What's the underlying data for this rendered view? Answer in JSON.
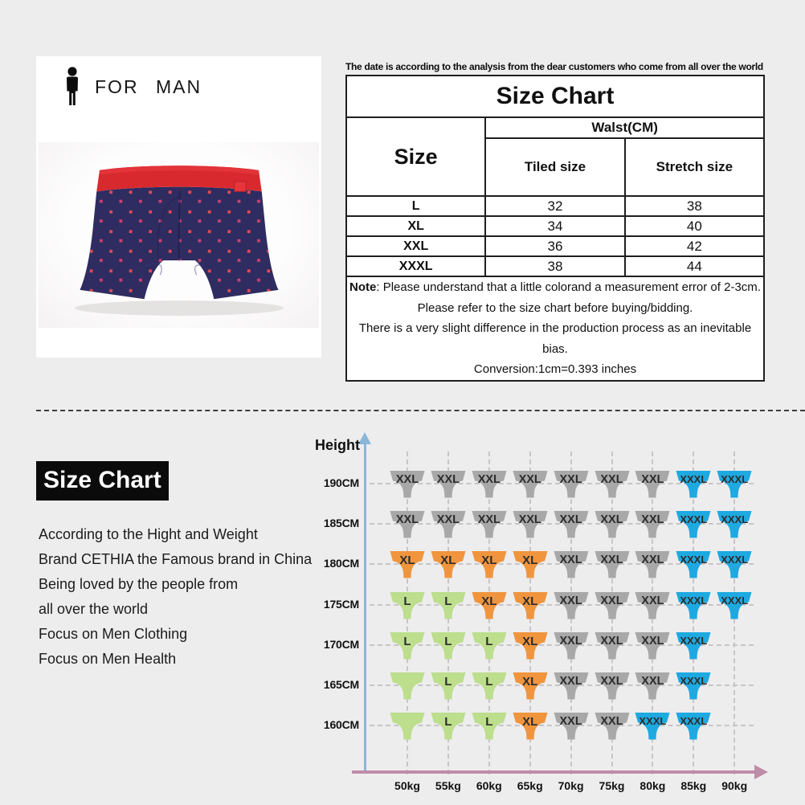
{
  "page": {
    "background": "#eeedee"
  },
  "product_card": {
    "man_label": "FOR MAN"
  },
  "top_note": "The date is according to the analysis from the dear customers who come from all over the world",
  "size_table": {
    "title": "Size Chart",
    "size_header": "Size",
    "group_header": "Walst(CM)",
    "sub_headers": [
      "Tiled size",
      "Stretch size"
    ],
    "rows": [
      {
        "size": "L",
        "tiled": "32",
        "stretch": "38"
      },
      {
        "size": "XL",
        "tiled": "34",
        "stretch": "40"
      },
      {
        "size": "XXL",
        "tiled": "36",
        "stretch": "42"
      },
      {
        "size": "XXXL",
        "tiled": "38",
        "stretch": "44"
      }
    ],
    "note": {
      "label": "Note",
      "first_line_rest": ": Please understand that a little colorand a measurement error of 2-3cm.",
      "extra_lines": [
        "Please refer to the size chart before buying/bidding.",
        "There is a very slight difference in the production process as an inevitable bias.",
        "Conversion:1cm=0.393 inches"
      ]
    }
  },
  "brand_section": {
    "title": "Size Chart",
    "lines": [
      "According to the Hight and Weight",
      "Brand CETHIA the Famous brand in China",
      "Being loved by the people from",
      "all over the world",
      "Focus on Men Clothing",
      "Focus on Men Health"
    ]
  },
  "chart_data": {
    "type": "heatmap",
    "title": "Size by height and weight",
    "y_axis_label": "Height",
    "y_categories": [
      "190CM",
      "185CM",
      "180CM",
      "175CM",
      "170CM",
      "165CM",
      "160CM"
    ],
    "x_categories": [
      "50kg",
      "55kg",
      "60kg",
      "65kg",
      "70kg",
      "75kg",
      "80kg",
      "85kg",
      "90kg"
    ],
    "sizes_legend": [
      "L",
      "XL",
      "XXL",
      "XXXL"
    ],
    "colors": {
      "L": "#bcde8d",
      "XL": "#f0953e",
      "XXL": "#a8a8a8",
      "XXXL": "#1ea9e1",
      "y_axis": "#8ab6d8",
      "x_axis": "#bf8ca8"
    },
    "grid": [
      [
        "XXL",
        "XXL",
        "XXL",
        "XXL",
        "XXL",
        "XXL",
        "XXL",
        "XXXL",
        "XXXL"
      ],
      [
        "XXL",
        "XXL",
        "XXL",
        "XXL",
        "XXL",
        "XXL",
        "XXL",
        "XXXL",
        "XXXL"
      ],
      [
        "XL",
        "XL",
        "XL",
        "XL",
        "XXL",
        "XXL",
        "XXL",
        "XXXL",
        "XXXL"
      ],
      [
        "L",
        "L",
        "XL",
        "XL",
        "XXL",
        "XXL",
        "XXL",
        "XXXL",
        "XXXL"
      ],
      [
        "L",
        "L",
        "L",
        "XL",
        "XXL",
        "XXL",
        "XXL",
        "XXXL",
        null
      ],
      [
        "",
        "L",
        "L",
        "XL",
        "XXL",
        "XXL",
        "XXL",
        "XXXL",
        null
      ],
      [
        "",
        "L",
        "L",
        "XL",
        "XXL",
        "XXL",
        "XXXL",
        "XXXL",
        null
      ]
    ]
  }
}
